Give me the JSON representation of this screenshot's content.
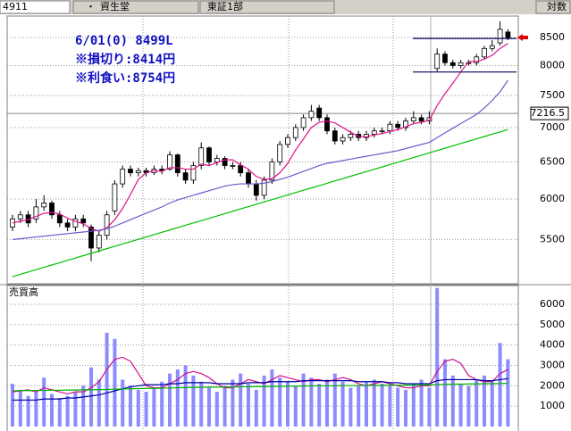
{
  "header": {
    "code": "4911",
    "bullet": "・",
    "name": "資生堂",
    "market": "東証1部",
    "scale_label": "対数"
  },
  "chart_data": [
    {
      "type": "candlestick",
      "log_scale": true,
      "grid": true,
      "ylim": [
        5000,
        8900
      ],
      "yticks": [
        5500,
        6000,
        6500,
        7000,
        7500,
        8000,
        8500
      ],
      "annotations": [
        "6/01(0) 8499L",
        "※損切り:8414円",
        "※利食い:8754円"
      ],
      "levels": [
        8480,
        7890
      ],
      "marker_price": 7216.5,
      "up_color": "#ffffff",
      "down_color": "#000000",
      "open": [
        5650,
        5750,
        5800,
        5750,
        5900,
        5950,
        5800,
        5700,
        5650,
        5750,
        5650,
        5400,
        5550,
        5850,
        6200,
        6400,
        6350,
        6380,
        6350,
        6400,
        6400,
        6600,
        6350,
        6250,
        6450,
        6700,
        6500,
        6550,
        6450,
        6450,
        6350,
        6200,
        6050,
        6250,
        6500,
        6750,
        6850,
        7000,
        7150,
        7300,
        7150,
        6950,
        6800,
        6850,
        6900,
        6850,
        6900,
        6950,
        6950,
        7050,
        7000,
        7100,
        7150,
        7100,
        7950,
        8200,
        8050,
        8000,
        8050,
        8050,
        8150,
        8300,
        8400,
        8600
      ],
      "high": [
        5800,
        5850,
        5850,
        6000,
        6050,
        5980,
        5850,
        5750,
        5800,
        5800,
        5680,
        5600,
        5850,
        6250,
        6450,
        6450,
        6420,
        6420,
        6450,
        6450,
        6650,
        6620,
        6400,
        6500,
        6780,
        6720,
        6600,
        6580,
        6500,
        6500,
        6400,
        6250,
        6300,
        6550,
        6800,
        6900,
        7050,
        7200,
        7350,
        7350,
        7200,
        7000,
        6900,
        6950,
        6950,
        6950,
        7000,
        7000,
        7100,
        7100,
        7150,
        7250,
        7200,
        7250,
        8300,
        8250,
        8100,
        8100,
        8100,
        8200,
        8350,
        8450,
        8800,
        8650
      ],
      "low": [
        5600,
        5700,
        5650,
        5700,
        5850,
        5750,
        5650,
        5600,
        5600,
        5650,
        5250,
        5350,
        5500,
        5800,
        6150,
        6300,
        6300,
        6300,
        6320,
        6330,
        6380,
        6300,
        6200,
        6200,
        6400,
        6450,
        6450,
        6400,
        6400,
        6300,
        6150,
        5980,
        6000,
        6200,
        6450,
        6700,
        6800,
        6950,
        7100,
        7100,
        6900,
        6750,
        6750,
        6800,
        6800,
        6800,
        6850,
        6900,
        6900,
        6950,
        6950,
        7050,
        7050,
        7050,
        7900,
        8000,
        7950,
        7950,
        8000,
        8000,
        8100,
        8250,
        8350,
        8450
      ],
      "close": [
        5750,
        5800,
        5700,
        5900,
        5950,
        5800,
        5700,
        5650,
        5750,
        5700,
        5400,
        5550,
        5800,
        6200,
        6400,
        6350,
        6380,
        6350,
        6400,
        6380,
        6600,
        6350,
        6250,
        6450,
        6700,
        6500,
        6550,
        6450,
        6450,
        6350,
        6200,
        6050,
        6250,
        6500,
        6750,
        6850,
        7000,
        7150,
        7250,
        7150,
        6950,
        6800,
        6850,
        6900,
        6850,
        6900,
        6950,
        6950,
        7050,
        7000,
        7100,
        7150,
        7100,
        7150,
        8200,
        8050,
        8000,
        8050,
        8050,
        8150,
        8300,
        8350,
        8650,
        8499
      ],
      "series": [
        {
          "color": "#e0108a",
          "values": [
            5700,
            5720,
            5740,
            5780,
            5820,
            5830,
            5810,
            5760,
            5720,
            5690,
            5630,
            5600,
            5640,
            5740,
            5880,
            6060,
            6260,
            6350,
            6380,
            6370,
            6420,
            6420,
            6400,
            6400,
            6470,
            6450,
            6490,
            6530,
            6530,
            6460,
            6400,
            6300,
            6260,
            6270,
            6350,
            6480,
            6670,
            6830,
            7000,
            7080,
            7100,
            7070,
            7000,
            6930,
            6870,
            6860,
            6890,
            6910,
            6940,
            6970,
            7010,
            7060,
            7080,
            7110,
            7340,
            7530,
            7700,
            7890,
            8070,
            8070,
            8110,
            8180,
            8300,
            8390
          ]
        },
        {
          "color": "#6a5acd",
          "values": [
            5500,
            5510,
            5520,
            5530,
            5540,
            5550,
            5560,
            5570,
            5580,
            5590,
            5600,
            5610,
            5630,
            5660,
            5700,
            5740,
            5780,
            5820,
            5860,
            5900,
            5950,
            5990,
            6020,
            6050,
            6080,
            6110,
            6140,
            6170,
            6190,
            6200,
            6200,
            6200,
            6210,
            6230,
            6260,
            6290,
            6330,
            6370,
            6410,
            6450,
            6480,
            6500,
            6520,
            6540,
            6560,
            6580,
            6600,
            6620,
            6640,
            6660,
            6690,
            6720,
            6750,
            6780,
            6850,
            6920,
            6990,
            7060,
            7130,
            7200,
            7300,
            7420,
            7560,
            7750
          ]
        },
        {
          "color": "#00c000",
          "values": [
            5077,
            5103,
            5128,
            5154,
            5180,
            5206,
            5232,
            5259,
            5285,
            5312,
            5339,
            5366,
            5393,
            5420,
            5447,
            5475,
            5502,
            5530,
            5558,
            5586,
            5614,
            5643,
            5671,
            5700,
            5728,
            5757,
            5786,
            5816,
            5845,
            5875,
            5904,
            5934,
            5964,
            5994,
            6024,
            6054,
            6085,
            6116,
            6146,
            6177,
            6208,
            6240,
            6271,
            6303,
            6334,
            6366,
            6398,
            6430,
            6463,
            6496,
            6529,
            6562,
            6595,
            6628,
            6662,
            6695,
            6729,
            6763,
            6797,
            6832,
            6866,
            6901,
            6935,
            6970
          ]
        }
      ]
    },
    {
      "type": "bar",
      "label": "売買高",
      "grid": true,
      "color": "#8c8cff",
      "ylim": [
        -220,
        6830
      ],
      "yticks": [
        1000,
        2000,
        3000,
        4000,
        5000,
        6000
      ],
      "values": [
        2100,
        1800,
        1500,
        1700,
        2400,
        1600,
        1400,
        1500,
        1700,
        2000,
        2900,
        2300,
        4600,
        4300,
        2300,
        2000,
        1800,
        1700,
        1900,
        2200,
        2600,
        2800,
        3000,
        2500,
        2200,
        1900,
        1700,
        2000,
        2300,
        2600,
        2100,
        1800,
        2500,
        2800,
        2400,
        2200,
        2000,
        2600,
        2400,
        2100,
        2300,
        2600,
        2200,
        1900,
        2000,
        2200,
        2300,
        2100,
        2000,
        1900,
        1800,
        2100,
        2300,
        1900,
        6800,
        3300,
        2500,
        2100,
        2000,
        2300,
        2500,
        2200,
        4100,
        3300
      ],
      "series": [
        {
          "color": "#d0108a",
          "values": [
            1700,
            1750,
            1800,
            1700,
            1900,
            1800,
            1700,
            1600,
            1700,
            1700,
            1900,
            2200,
            2800,
            3300,
            3400,
            3200,
            2600,
            2000,
            1900,
            1900,
            2100,
            2300,
            2600,
            2700,
            2600,
            2400,
            2100,
            1900,
            1900,
            2100,
            2300,
            2200,
            2100,
            2300,
            2500,
            2400,
            2300,
            2200,
            2300,
            2300,
            2200,
            2300,
            2400,
            2300,
            2100,
            2000,
            2100,
            2200,
            2100,
            2000,
            1900,
            1900,
            2000,
            2000,
            2700,
            3200,
            3300,
            3100,
            2500,
            2300,
            2200,
            2200,
            2600,
            2800
          ]
        },
        {
          "color": "#0000a0",
          "values": [
            1300,
            1300,
            1300,
            1300,
            1350,
            1350,
            1350,
            1400,
            1400,
            1450,
            1500,
            1550,
            1650,
            1750,
            1850,
            1950,
            2000,
            2050,
            2050,
            2050,
            2100,
            2100,
            2150,
            2150,
            2150,
            2150,
            2100,
            2100,
            2100,
            2100,
            2150,
            2150,
            2150,
            2200,
            2200,
            2200,
            2200,
            2250,
            2250,
            2250,
            2250,
            2250,
            2250,
            2250,
            2200,
            2200,
            2200,
            2200,
            2150,
            2150,
            2100,
            2100,
            2100,
            2100,
            2250,
            2300,
            2300,
            2300,
            2300,
            2300,
            2250,
            2250,
            2300,
            2350
          ]
        },
        {
          "color": "#00b000",
          "values": [
            1750,
            1760,
            1760,
            1770,
            1770,
            1780,
            1780,
            1790,
            1790,
            1800,
            1800,
            1810,
            1820,
            1830,
            1840,
            1850,
            1860,
            1870,
            1870,
            1880,
            1890,
            1900,
            1910,
            1920,
            1920,
            1930,
            1930,
            1940,
            1940,
            1950,
            1950,
            1960,
            1960,
            1970,
            1970,
            1980,
            1980,
            1990,
            1990,
            2000,
            2000,
            2000,
            2010,
            2010,
            2010,
            2020,
            2020,
            2020,
            2030,
            2030,
            2030,
            2030,
            2040,
            2040,
            2060,
            2070,
            2080,
            2080,
            2090,
            2090,
            2100,
            2100,
            2110,
            2120
          ]
        }
      ]
    }
  ]
}
